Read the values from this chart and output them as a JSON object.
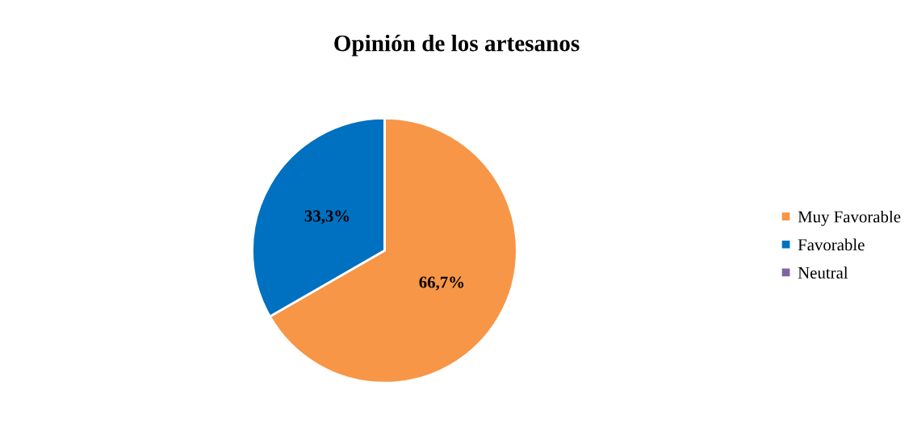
{
  "chart_data": {
    "type": "pie",
    "title": "Opinión de los artesanos",
    "categories": [
      "Muy Favorable",
      "Favorable",
      "Neutral"
    ],
    "values": [
      66.7,
      33.3,
      0
    ],
    "colors": [
      "#f79646",
      "#0070c0",
      "#8064a2"
    ],
    "value_labels": [
      "66,7%",
      "33,3%",
      null
    ],
    "legend": "right"
  }
}
